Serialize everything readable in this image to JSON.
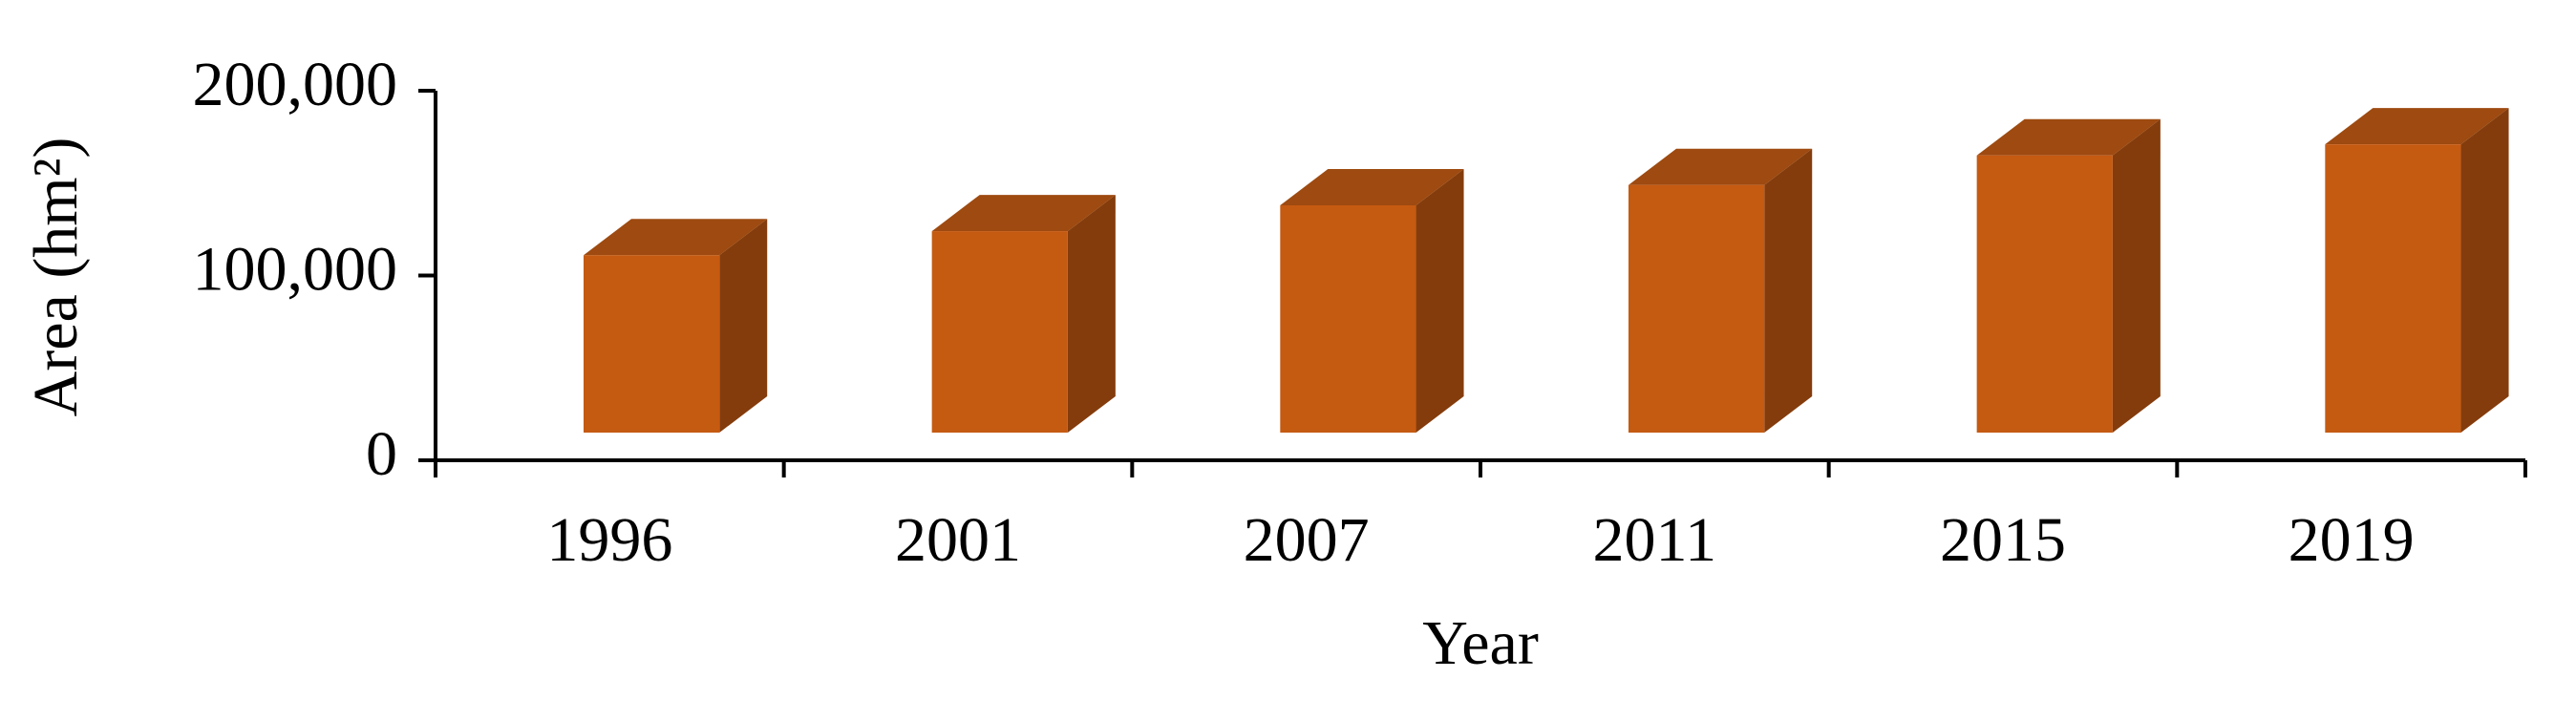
{
  "chart_data": {
    "type": "bar3d",
    "x_label": "Year",
    "y_label": "Area (hm²)",
    "categories": [
      "1996",
      "2001",
      "2007",
      "2011",
      "2015",
      "2019"
    ],
    "values": [
      96000,
      109000,
      123000,
      134000,
      150000,
      156000
    ],
    "color": "#c55a11",
    "side_color": "#843c0c",
    "top_color": "#9e4a10",
    "ylim": [
      0,
      200000
    ],
    "yticks": [
      0,
      {
        "value": 100000,
        "label": "100,000"
      },
      {
        "value": 200000,
        "label": "200,000"
      }
    ],
    "grid": false
  }
}
